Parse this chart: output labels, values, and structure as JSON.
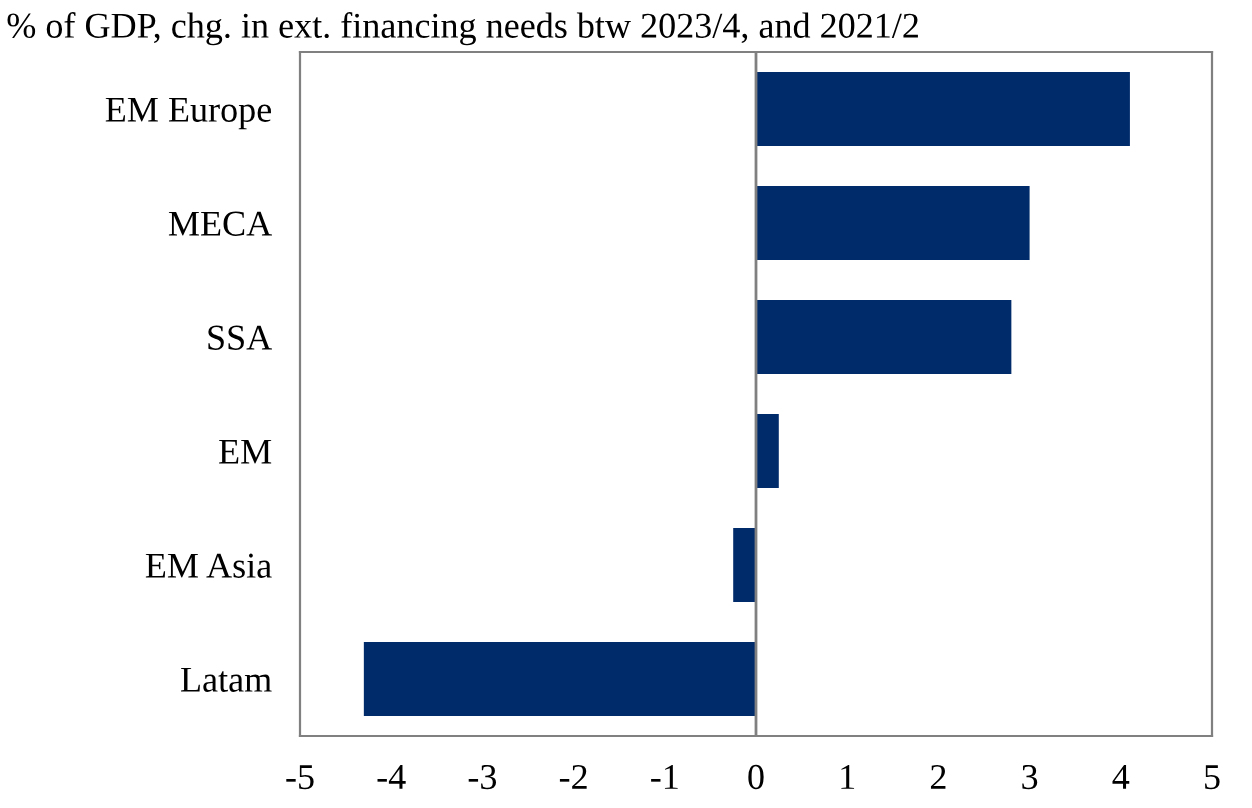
{
  "chart_data": {
    "type": "bar",
    "orientation": "horizontal",
    "title": "% of GDP, chg. in ext. financing needs btw 2023/4, and 2021/2",
    "categories": [
      "EM Europe",
      "MECA",
      "SSA",
      "EM",
      "EM Asia",
      "Latam"
    ],
    "values": [
      4.1,
      3.0,
      2.8,
      0.25,
      -0.25,
      -4.3
    ],
    "color": "#002b6b",
    "xlim": [
      -5,
      5
    ],
    "xticks": [
      -5,
      -4,
      -3,
      -2,
      -1,
      0,
      1,
      2,
      3,
      4,
      5
    ],
    "ref_lines": [
      {
        "axis": "x",
        "value": 0,
        "color": "#808080"
      }
    ],
    "legend": false
  }
}
